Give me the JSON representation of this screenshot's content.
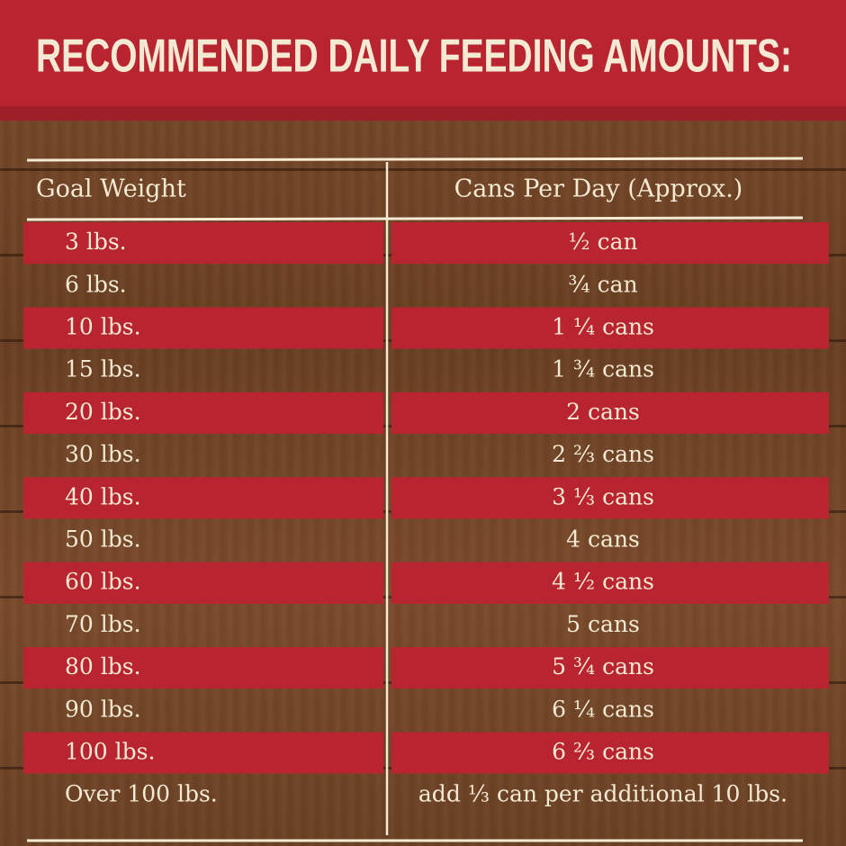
{
  "header": {
    "title": "RECOMMENDED DAILY FEEDING AMOUNTS:"
  },
  "table": {
    "columns": [
      "Goal Weight",
      "Cans Per Day (Approx.)"
    ],
    "rows": [
      [
        "3 lbs.",
        "½ can"
      ],
      [
        "6 lbs.",
        "¾ can"
      ],
      [
        "10 lbs.",
        "1 ¼ cans"
      ],
      [
        "15 lbs.",
        "1 ¾ cans"
      ],
      [
        "20 lbs.",
        "2 cans"
      ],
      [
        "30 lbs.",
        "2 ⅔ cans"
      ],
      [
        "40 lbs.",
        "3 ⅓ cans"
      ],
      [
        "50 lbs.",
        "4 cans"
      ],
      [
        "60 lbs.",
        "4 ½ cans"
      ],
      [
        "70 lbs.",
        "5 cans"
      ],
      [
        "80 lbs.",
        "5 ¾ cans"
      ],
      [
        "90 lbs.",
        "6 ¼ cans"
      ],
      [
        "100 lbs.",
        "6 ⅔ cans"
      ],
      [
        "Over 100 lbs.",
        "add ⅓ can per additional 10 lbs."
      ]
    ]
  }
}
